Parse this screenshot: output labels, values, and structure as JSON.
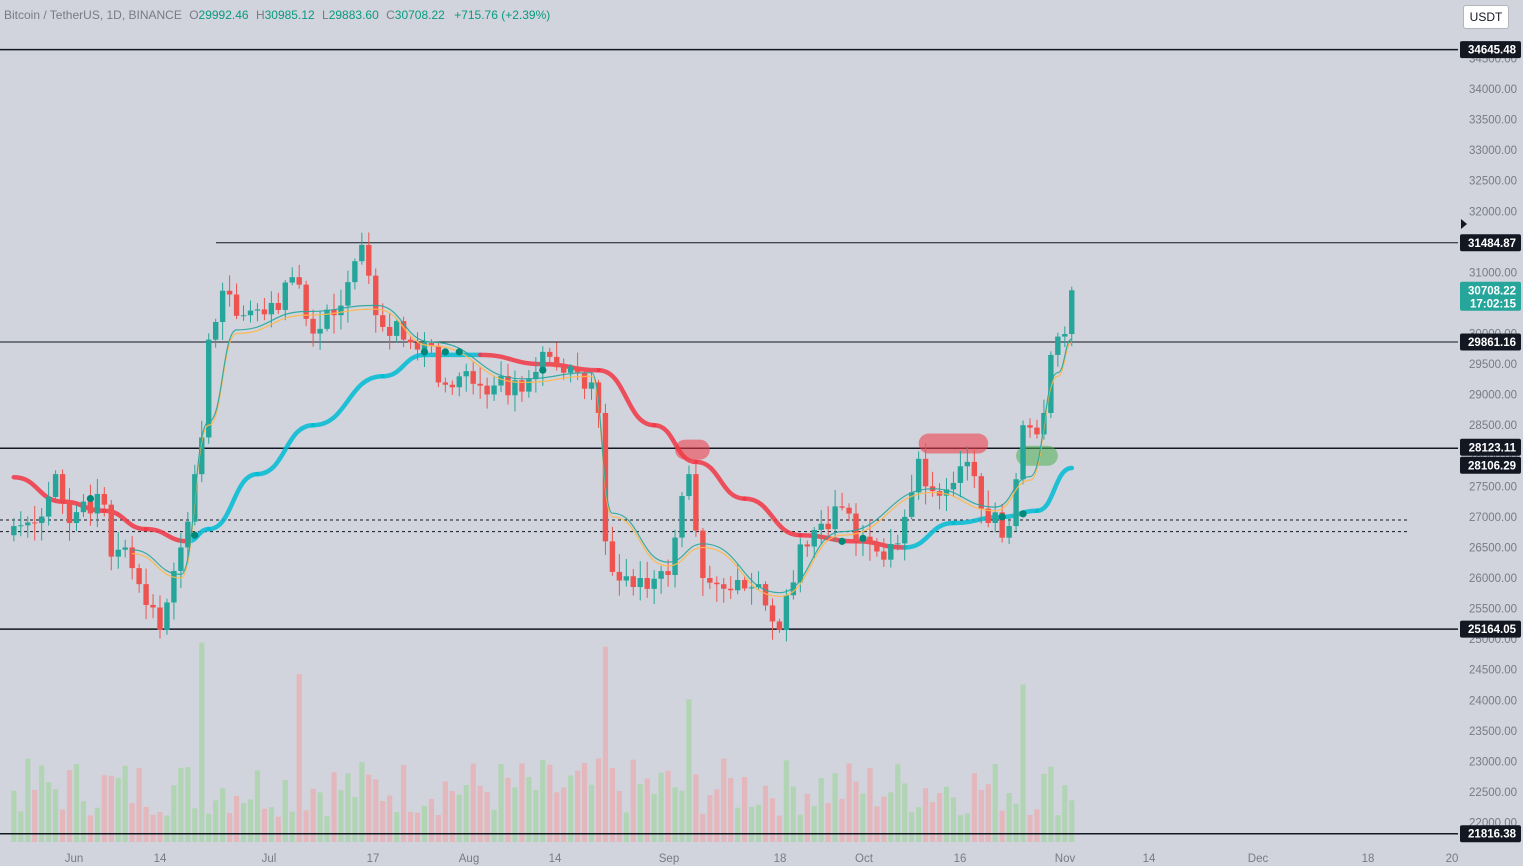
{
  "header": {
    "symbol": "Bitcoin / TetherUS, 1D, BINANCE",
    "o_label": "O",
    "o": "29992.46",
    "h_label": "H",
    "h": "30985.12",
    "l_label": "L",
    "l": "29883.60",
    "c_label": "C",
    "c": "30708.22",
    "change": "+715.76 (+2.39%)"
  },
  "currency_button": "USDT",
  "colors": {
    "up": "#26a69a",
    "down": "#ef5350",
    "background": "#d1d4dc",
    "ema_slow_bear": "#f23645",
    "ema_slow_bull": "#00bcd4"
  },
  "chart_data": {
    "type": "candlestick",
    "title": "Bitcoin / TetherUS, 1D, BINANCE",
    "ylim": [
      21650,
      35200
    ],
    "y_ticks": [
      22000,
      22500,
      23000,
      23500,
      24000,
      24500,
      25000,
      25500,
      26000,
      26500,
      27000,
      27500,
      28000,
      28500,
      29000,
      29500,
      30000,
      30500,
      31000,
      31500,
      32000,
      32500,
      33000,
      33500,
      34000,
      34500
    ],
    "x_ticks": [
      "Jun",
      "14",
      "Jul",
      "17",
      "Aug",
      "14",
      "Sep",
      "18",
      "Oct",
      "16",
      "Nov",
      "14",
      "Dec",
      "18",
      "20"
    ],
    "horizontal_levels": [
      {
        "value": 34645.48,
        "label": "34645.48"
      },
      {
        "value": 31484.87,
        "label": "31484.87"
      },
      {
        "value": 29861.16,
        "label": "29861.16"
      },
      {
        "value": 28123.11,
        "label": "28123.11"
      },
      {
        "value": 28106.29,
        "label": "28106.29"
      },
      {
        "value": 25164.05,
        "label": "25164.05"
      },
      {
        "value": 21816.38,
        "label": "21816.38"
      }
    ],
    "dashed_levels": [
      26950,
      26760
    ],
    "last_price": {
      "value": 30708.22,
      "label": "30708.22",
      "countdown": "17:02:15"
    },
    "close_series": [
      {
        "x": "2023-05-24",
        "y": 26850
      },
      {
        "x": "2023-05-27",
        "y": 26900
      },
      {
        "x": "2023-05-30",
        "y": 27700
      },
      {
        "x": "2023-06-01",
        "y": 26900
      },
      {
        "x": "2023-06-03",
        "y": 27250
      },
      {
        "x": "2023-06-06",
        "y": 27200
      },
      {
        "x": "2023-06-07",
        "y": 26350
      },
      {
        "x": "2023-06-09",
        "y": 26500
      },
      {
        "x": "2023-06-11",
        "y": 25900
      },
      {
        "x": "2023-06-14",
        "y": 25150
      },
      {
        "x": "2023-06-15",
        "y": 25600
      },
      {
        "x": "2023-06-17",
        "y": 26500
      },
      {
        "x": "2023-06-20",
        "y": 28300
      },
      {
        "x": "2023-06-21",
        "y": 29900
      },
      {
        "x": "2023-06-23",
        "y": 30700
      },
      {
        "x": "2023-06-26",
        "y": 30300
      },
      {
        "x": "2023-06-30",
        "y": 30500
      },
      {
        "x": "2023-07-04",
        "y": 30800
      },
      {
        "x": "2023-07-06",
        "y": 30000
      },
      {
        "x": "2023-07-09",
        "y": 30300
      },
      {
        "x": "2023-07-13",
        "y": 31450
      },
      {
        "x": "2023-07-15",
        "y": 30300
      },
      {
        "x": "2023-07-19",
        "y": 29900
      },
      {
        "x": "2023-07-23",
        "y": 29800
      },
      {
        "x": "2023-07-24",
        "y": 29200
      },
      {
        "x": "2023-07-27",
        "y": 29300
      },
      {
        "x": "2023-08-01",
        "y": 29150
      },
      {
        "x": "2023-08-05",
        "y": 29050
      },
      {
        "x": "2023-08-08",
        "y": 29700
      },
      {
        "x": "2023-08-10",
        "y": 29450
      },
      {
        "x": "2023-08-15",
        "y": 29200
      },
      {
        "x": "2023-08-16",
        "y": 28700
      },
      {
        "x": "2023-08-17",
        "y": 26600
      },
      {
        "x": "2023-08-18",
        "y": 26100
      },
      {
        "x": "2023-08-22",
        "y": 26000
      },
      {
        "x": "2023-08-26",
        "y": 26050
      },
      {
        "x": "2023-08-29",
        "y": 27700
      },
      {
        "x": "2023-08-31",
        "y": 26000
      },
      {
        "x": "2023-09-04",
        "y": 25800
      },
      {
        "x": "2023-09-08",
        "y": 25900
      },
      {
        "x": "2023-09-11",
        "y": 25150
      },
      {
        "x": "2023-09-14",
        "y": 26550
      },
      {
        "x": "2023-09-18",
        "y": 26800
      },
      {
        "x": "2023-09-20",
        "y": 27150
      },
      {
        "x": "2023-09-22",
        "y": 26600
      },
      {
        "x": "2023-09-26",
        "y": 26300
      },
      {
        "x": "2023-09-29",
        "y": 27000
      },
      {
        "x": "2023-10-01",
        "y": 27950
      },
      {
        "x": "2023-10-02",
        "y": 27500
      },
      {
        "x": "2023-10-05",
        "y": 27450
      },
      {
        "x": "2023-10-08",
        "y": 27900
      },
      {
        "x": "2023-10-11",
        "y": 26900
      },
      {
        "x": "2023-10-14",
        "y": 26850
      },
      {
        "x": "2023-10-16",
        "y": 28500
      },
      {
        "x": "2023-10-18",
        "y": 28350
      },
      {
        "x": "2023-10-19",
        "y": 28700
      },
      {
        "x": "2023-10-20",
        "y": 29650
      },
      {
        "x": "2023-10-21",
        "y": 29950
      },
      {
        "x": "2023-10-22",
        "y": 29992
      },
      {
        "x": "2023-10-23",
        "y": 30708
      }
    ],
    "ema_fast": [
      {
        "x": "2023-06-10",
        "y": 26400
      },
      {
        "x": "2023-06-17",
        "y": 26000
      },
      {
        "x": "2023-06-21",
        "y": 28500
      },
      {
        "x": "2023-06-25",
        "y": 30000
      },
      {
        "x": "2023-07-05",
        "y": 30300
      },
      {
        "x": "2023-07-15",
        "y": 30400
      },
      {
        "x": "2023-07-23",
        "y": 29800
      },
      {
        "x": "2023-08-05",
        "y": 29200
      },
      {
        "x": "2023-08-15",
        "y": 29300
      },
      {
        "x": "2023-08-18",
        "y": 27000
      },
      {
        "x": "2023-08-26",
        "y": 26200
      },
      {
        "x": "2023-08-31",
        "y": 26500
      },
      {
        "x": "2023-09-11",
        "y": 25700
      },
      {
        "x": "2023-09-20",
        "y": 26700
      },
      {
        "x": "2023-10-03",
        "y": 27400
      },
      {
        "x": "2023-10-12",
        "y": 27100
      },
      {
        "x": "2023-10-17",
        "y": 27600
      },
      {
        "x": "2023-10-21",
        "y": 29300
      },
      {
        "x": "2023-10-23",
        "y": 29850
      }
    ],
    "ema_slow": [
      {
        "x": "2023-05-24",
        "y": 27650
      },
      {
        "x": "2023-05-31",
        "y": 27250
      },
      {
        "x": "2023-06-06",
        "y": 27100
      },
      {
        "x": "2023-06-12",
        "y": 26800
      },
      {
        "x": "2023-06-18",
        "y": 26600
      },
      {
        "x": "2023-06-21",
        "y": 26800
      },
      {
        "x": "2023-06-28",
        "y": 27700
      },
      {
        "x": "2023-07-06",
        "y": 28500
      },
      {
        "x": "2023-07-16",
        "y": 29300
      },
      {
        "x": "2023-07-22",
        "y": 29650
      },
      {
        "x": "2023-07-30",
        "y": 29650
      },
      {
        "x": "2023-08-08",
        "y": 29500
      },
      {
        "x": "2023-08-16",
        "y": 29400
      },
      {
        "x": "2023-08-24",
        "y": 28500
      },
      {
        "x": "2023-08-30",
        "y": 27900
      },
      {
        "x": "2023-09-06",
        "y": 27300
      },
      {
        "x": "2023-09-14",
        "y": 26700
      },
      {
        "x": "2023-09-22",
        "y": 26600
      },
      {
        "x": "2023-09-29",
        "y": 26500
      },
      {
        "x": "2023-10-06",
        "y": 26900
      },
      {
        "x": "2023-10-13",
        "y": 27000
      },
      {
        "x": "2023-10-18",
        "y": 27100
      },
      {
        "x": "2023-10-23",
        "y": 27800
      }
    ],
    "highlights": [
      {
        "x_start": "2023-08-27",
        "x_end": "2023-09-01",
        "y": 28100,
        "color": "#f23645"
      },
      {
        "x_start": "2023-10-01",
        "x_end": "2023-10-11",
        "y": 28200,
        "color": "#f23645"
      },
      {
        "x_start": "2023-10-15",
        "x_end": "2023-10-21",
        "y": 28000,
        "color": "#4caf50"
      }
    ],
    "volume": [
      {
        "x": "2023-06-20",
        "y": 0.95
      },
      {
        "x": "2023-08-17",
        "y": 0.93
      },
      {
        "x": "2023-10-16",
        "y": 0.75
      },
      {
        "x": "2023-07-04",
        "y": 0.8
      },
      {
        "x": "2023-08-29",
        "y": 0.68
      }
    ]
  }
}
